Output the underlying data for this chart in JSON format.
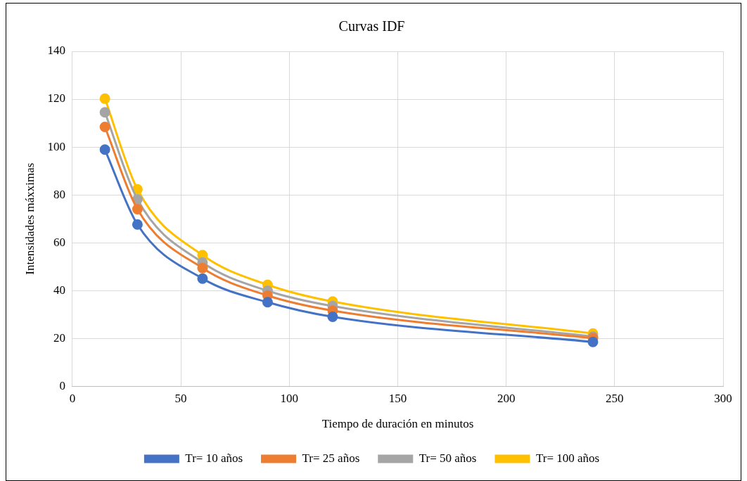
{
  "chart_data": {
    "type": "line",
    "title": "Curvas IDF",
    "xlabel": "Tiempo de duración en minutos",
    "ylabel": "Intensidades máxximas",
    "x": [
      15,
      30,
      60,
      90,
      120,
      240
    ],
    "series": [
      {
        "name": "Tr= 10 años",
        "color": "#4472c4",
        "values": [
          98.9,
          67.6,
          45.0,
          35.1,
          29.0,
          18.5
        ]
      },
      {
        "name": "Tr= 25 años",
        "color": "#ed7d31",
        "values": [
          108.4,
          74.0,
          49.4,
          37.9,
          31.6,
          20.1
        ]
      },
      {
        "name": "Tr= 50 años",
        "color": "#a5a5a5",
        "values": [
          114.5,
          78.1,
          51.7,
          39.9,
          33.5,
          20.7
        ]
      },
      {
        "name": "Tr= 100 años",
        "color": "#ffc000",
        "values": [
          120.2,
          82.3,
          54.8,
          42.4,
          35.4,
          22.0
        ]
      }
    ],
    "xlim": [
      0,
      300
    ],
    "xticks": [
      0,
      50,
      100,
      150,
      200,
      250,
      300
    ],
    "ylim": [
      0,
      140
    ],
    "yticks": [
      0,
      20,
      40,
      60,
      80,
      100,
      120,
      140
    ],
    "grid": true,
    "legend": "bottom",
    "marker": "circle",
    "line_style": "solid"
  }
}
